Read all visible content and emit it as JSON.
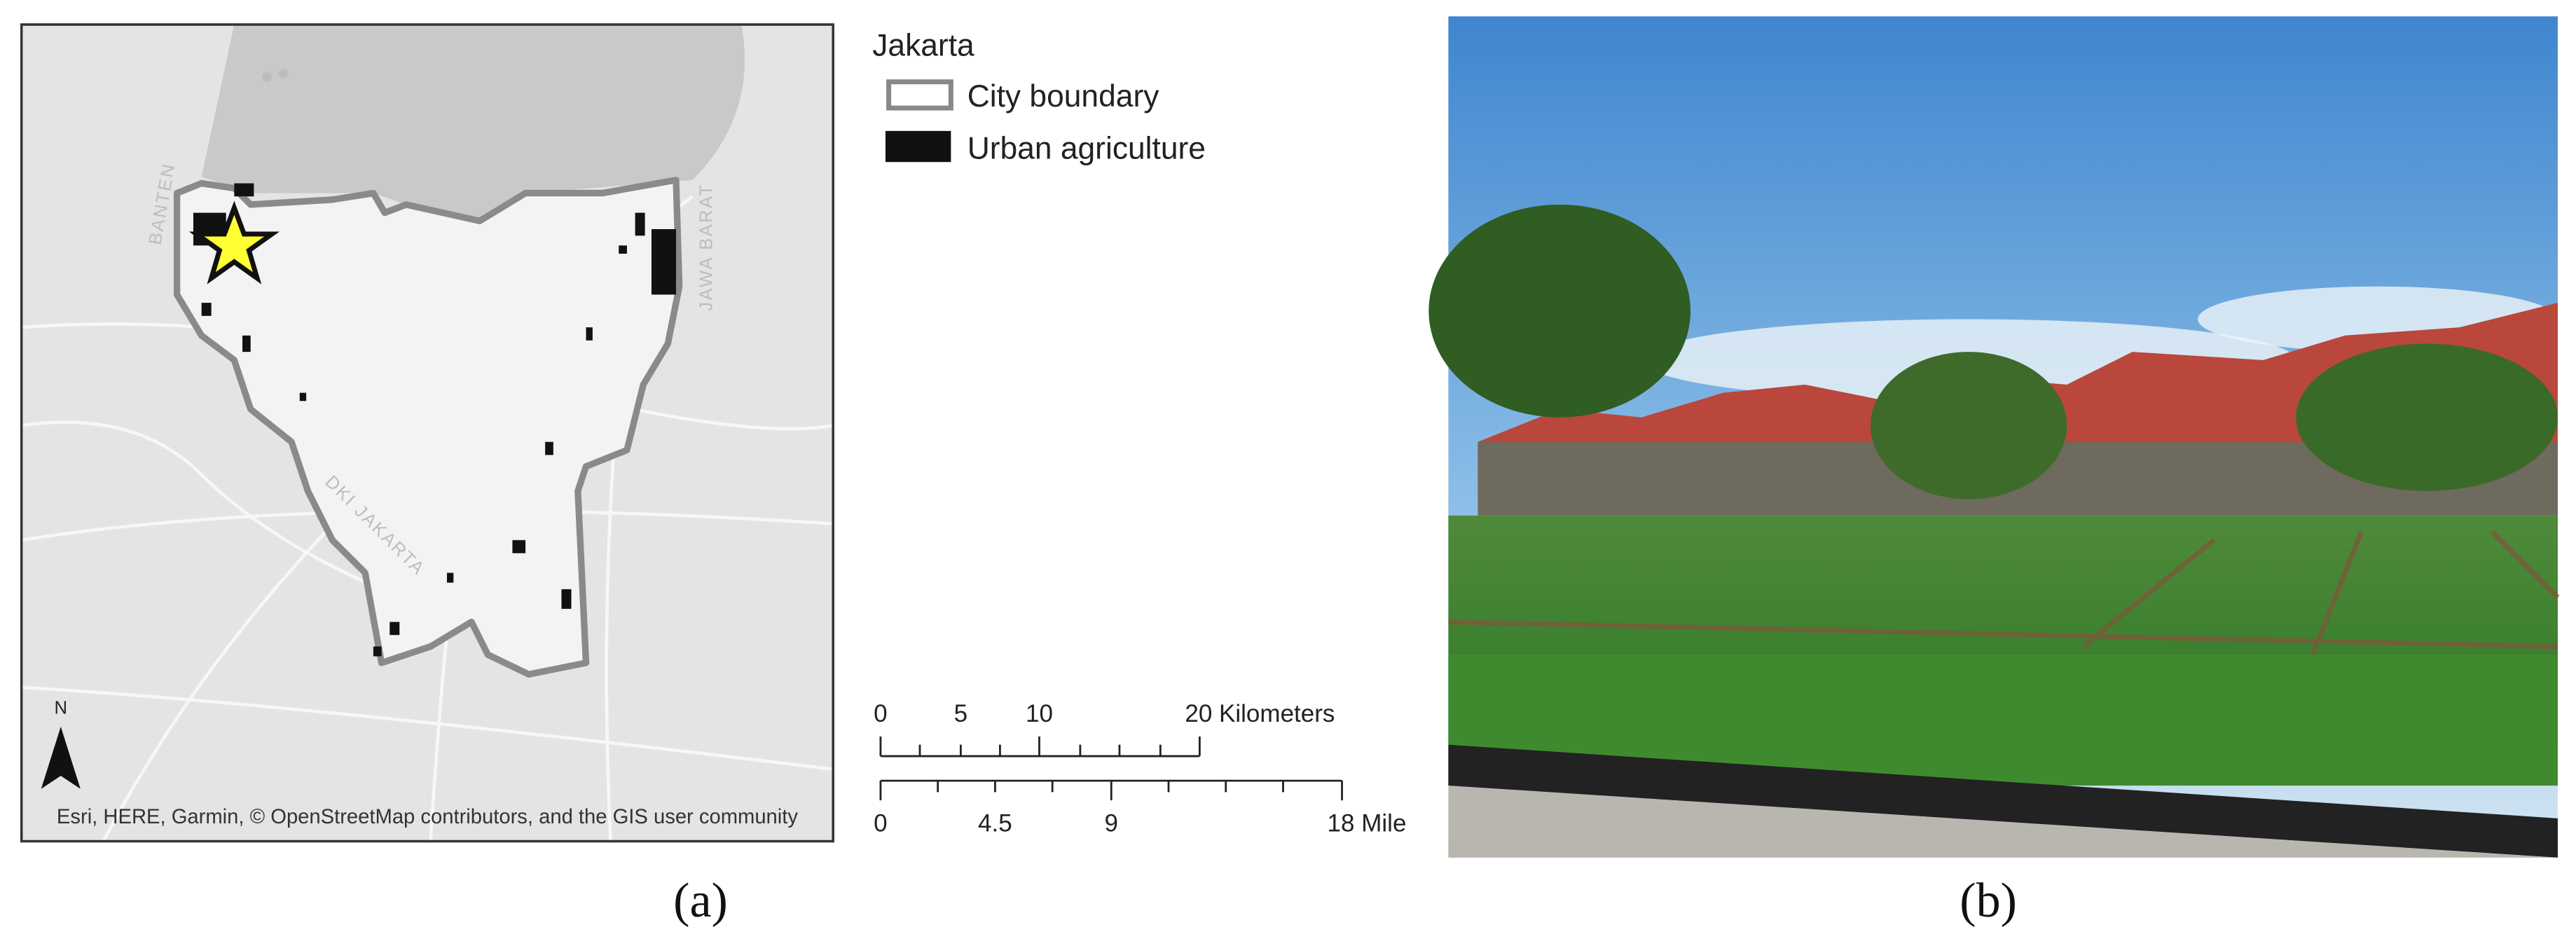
{
  "map": {
    "labels": [
      "BANTEN",
      "JAWA BARAT",
      "DKI JAKARTA"
    ],
    "north": "N",
    "attribution": "Esri, HERE, Garmin, © OpenStreetMap contributors, and the GIS user community"
  },
  "legend": {
    "title": "Jakarta",
    "items": [
      "City boundary",
      "Urban agriculture"
    ]
  },
  "scale_bar": {
    "km_labels": [
      "0",
      "5",
      "10",
      "20 Kilometers"
    ],
    "mile_labels": [
      "0",
      "4.5",
      "9",
      "18 Mile"
    ]
  },
  "captions": [
    "(a)",
    "(b)"
  ]
}
